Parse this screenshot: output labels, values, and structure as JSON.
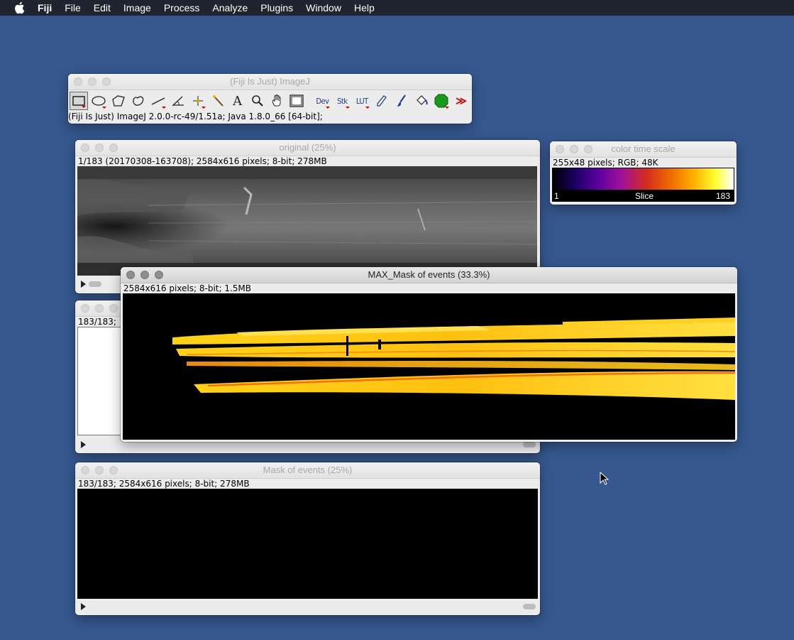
{
  "menubar": {
    "items": [
      "Fiji",
      "File",
      "Edit",
      "Image",
      "Process",
      "Analyze",
      "Plugins",
      "Window",
      "Help"
    ]
  },
  "imagej": {
    "title": "(Fiji Is Just) ImageJ",
    "tools": [
      "rectangle-icon",
      "oval-icon",
      "polygon-icon",
      "freehand-icon",
      "line-icon",
      "angle-icon",
      "point-icon",
      "wand-icon",
      "text-icon",
      "magnifier-icon",
      "hand-icon",
      "dropper-icon"
    ],
    "tool_text": [
      "A"
    ],
    "menus": [
      "Dev",
      "Stk",
      "LUT"
    ],
    "status": "(Fiji Is Just) ImageJ 2.0.0-rc-49/1.51a; Java 1.8.0_66 [64-bit];"
  },
  "original": {
    "title": "original (25%)",
    "info": "1/183 (20170308-163708); 2584x616 pixels; 8-bit; 278MB"
  },
  "colortime": {
    "title": "color time scale",
    "info": "255x48 pixels; RGB; 48K",
    "label_min": "1",
    "label_mid": "Slice",
    "label_max": "183"
  },
  "hidden_window": {
    "info": "183/183;"
  },
  "maxmask": {
    "title": "MAX_Mask of events (33.3%)",
    "info": "2584x616 pixels; 8-bit; 1.5MB"
  },
  "mask": {
    "title": "Mask of events (25%)",
    "info": "183/183; 2584x616 pixels; 8-bit; 278MB"
  },
  "colors": {
    "desktop": "#36588f",
    "menubar": "#1e2530",
    "lut_low": "#000000",
    "lut_mid": "#d42d1e",
    "lut_high": "#ffffff"
  }
}
